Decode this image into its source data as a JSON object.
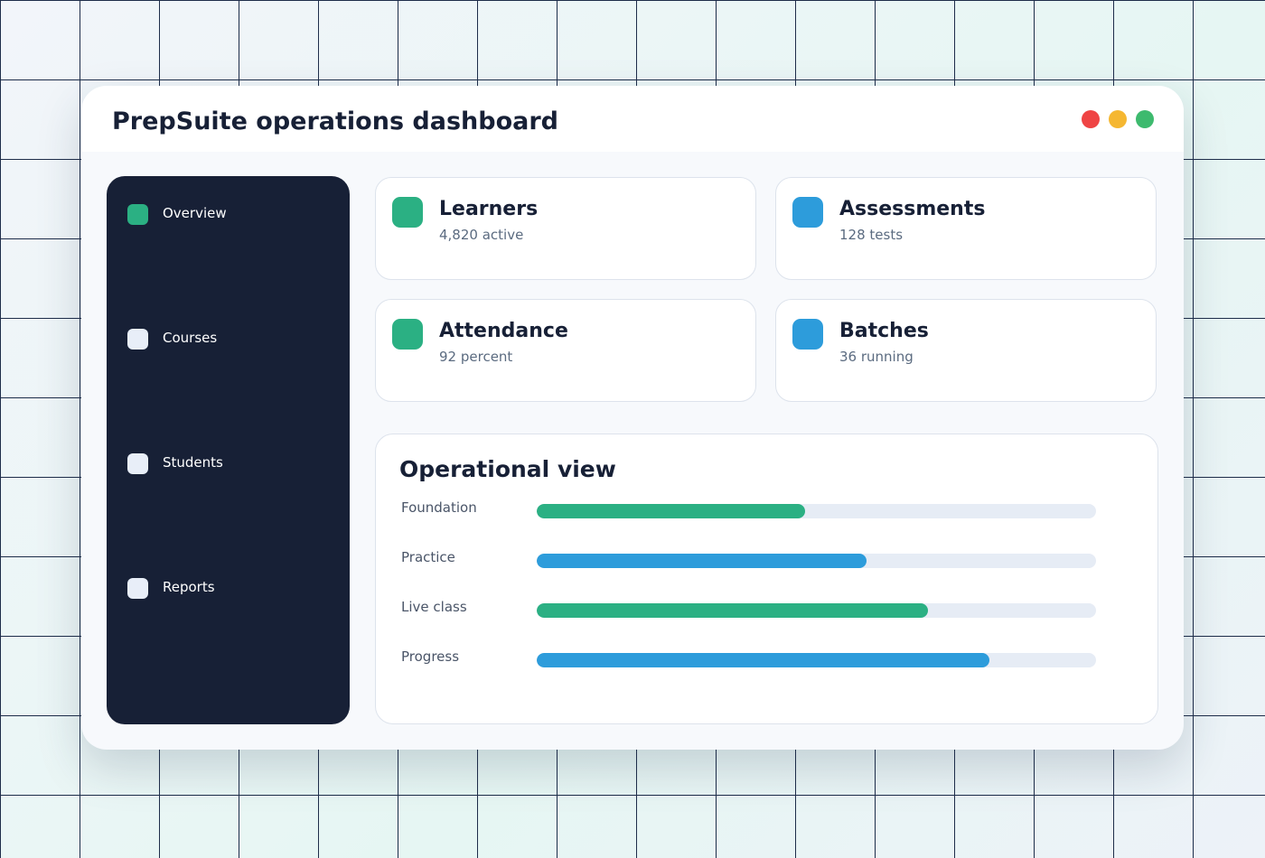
{
  "header": {
    "title": "PrepSuite operations dashboard"
  },
  "sidebar": {
    "items": [
      "Overview",
      "Courses",
      "Students",
      "Reports"
    ],
    "active_index": 0,
    "active_color": "#2bb083"
  },
  "cards": [
    {
      "title": "Learners",
      "subtitle": "4,820 active",
      "color": "#2bb083"
    },
    {
      "title": "Assessments",
      "subtitle": "128 tests",
      "color": "#2d9cdb"
    },
    {
      "title": "Attendance",
      "subtitle": "92 percent",
      "color": "#2bb083"
    },
    {
      "title": "Batches",
      "subtitle": "36 running",
      "color": "#2d9cdb"
    }
  ],
  "panel": {
    "title": "Operational view",
    "xlim": [
      0,
      100
    ],
    "rows": [
      {
        "label": "Foundation",
        "value": 48,
        "color": "#2bb083"
      },
      {
        "label": "Practice",
        "value": 59,
        "color": "#2d9cdb"
      },
      {
        "label": "Live class",
        "value": 70,
        "color": "#2bb083"
      },
      {
        "label": "Progress",
        "value": 81,
        "color": "#2d9cdb"
      }
    ]
  }
}
